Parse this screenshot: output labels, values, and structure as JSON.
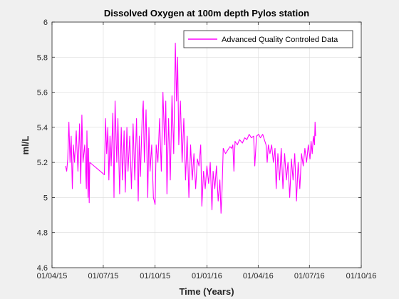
{
  "chart_data": {
    "type": "line",
    "title": "Dissolved Oxygen at 100m depth Pylos station",
    "xlabel": "Time (Years)",
    "ylabel": "ml/L",
    "xlim": [
      "2015-04-01",
      "2016-10-01"
    ],
    "ylim": [
      4.6,
      6
    ],
    "x_tick_labels": [
      "01/04/15",
      "01/07/15",
      "01/10/15",
      "01/01/16",
      "01/04/16",
      "01/07/16",
      "01/10/16"
    ],
    "x_tick_dates": [
      "2015-04-01",
      "2015-07-01",
      "2015-10-01",
      "2016-01-01",
      "2016-04-01",
      "2016-07-01",
      "2016-10-01"
    ],
    "y_ticks": [
      4.6,
      4.8,
      5,
      5.2,
      5.4,
      5.6,
      5.8,
      6
    ],
    "y_tick_labels": [
      "4.6",
      "4.8",
      "5",
      "5.2",
      "5.4",
      "5.6",
      "5.8",
      "6"
    ],
    "grid": true,
    "legend_position": "top-right",
    "series": [
      {
        "name": "Advanced Quality Controled Data",
        "color": "#ff00ff",
        "points": [
          [
            "2015-04-25",
            5.18
          ],
          [
            "2015-04-27",
            5.15
          ],
          [
            "2015-04-29",
            5.22
          ],
          [
            "2015-05-01",
            5.43
          ],
          [
            "2015-05-03",
            5.2
          ],
          [
            "2015-05-05",
            5.35
          ],
          [
            "2015-05-07",
            5.05
          ],
          [
            "2015-05-09",
            5.3
          ],
          [
            "2015-05-11",
            5.2
          ],
          [
            "2015-05-14",
            5.38
          ],
          [
            "2015-05-17",
            5.15
          ],
          [
            "2015-05-20",
            5.42
          ],
          [
            "2015-05-22",
            5.08
          ],
          [
            "2015-05-24",
            5.47
          ],
          [
            "2015-05-26",
            5.2
          ],
          [
            "2015-05-29",
            5.3
          ],
          [
            "2015-06-01",
            5.05
          ],
          [
            "2015-06-02",
            5.38
          ],
          [
            "2015-06-04",
            5.0
          ],
          [
            "2015-06-05",
            5.28
          ],
          [
            "2015-06-06",
            4.97
          ],
          [
            "2015-06-07",
            5.2
          ],
          [
            "2015-07-03",
            5.13
          ],
          [
            "2015-07-05",
            5.45
          ],
          [
            "2015-07-07",
            5.25
          ],
          [
            "2015-07-09",
            5.4
          ],
          [
            "2015-07-11",
            5.1
          ],
          [
            "2015-07-13",
            5.35
          ],
          [
            "2015-07-15",
            5.18
          ],
          [
            "2015-07-18",
            5.48
          ],
          [
            "2015-07-20",
            5.0
          ],
          [
            "2015-07-22",
            5.55
          ],
          [
            "2015-07-25",
            5.2
          ],
          [
            "2015-07-27",
            5.45
          ],
          [
            "2015-07-30",
            5.02
          ],
          [
            "2015-08-02",
            5.4
          ],
          [
            "2015-08-04",
            5.1
          ],
          [
            "2015-08-07",
            5.38
          ],
          [
            "2015-08-09",
            5.03
          ],
          [
            "2015-08-12",
            5.4
          ],
          [
            "2015-08-14",
            5.15
          ],
          [
            "2015-08-17",
            5.35
          ],
          [
            "2015-08-20",
            5.05
          ],
          [
            "2015-08-23",
            5.42
          ],
          [
            "2015-08-26",
            5.1
          ],
          [
            "2015-08-29",
            5.45
          ],
          [
            "2015-09-01",
            4.98
          ],
          [
            "2015-09-03",
            5.35
          ],
          [
            "2015-09-05",
            5.12
          ],
          [
            "2015-09-08",
            5.45
          ],
          [
            "2015-09-10",
            5.55
          ],
          [
            "2015-09-12",
            5.2
          ],
          [
            "2015-09-15",
            5.5
          ],
          [
            "2015-09-18",
            5.0
          ],
          [
            "2015-09-20",
            5.4
          ],
          [
            "2015-09-22",
            5.15
          ],
          [
            "2015-09-25",
            5.3
          ],
          [
            "2015-09-28",
            5.0
          ],
          [
            "2015-10-01",
            4.96
          ],
          [
            "2015-10-03",
            5.3
          ],
          [
            "2015-10-06",
            5.2
          ],
          [
            "2015-10-09",
            5.45
          ],
          [
            "2015-10-12",
            5.15
          ],
          [
            "2015-10-15",
            5.6
          ],
          [
            "2015-10-18",
            5.3
          ],
          [
            "2015-10-20",
            5.55
          ],
          [
            "2015-10-22",
            5.02
          ],
          [
            "2015-10-25",
            5.45
          ],
          [
            "2015-10-28",
            5.1
          ],
          [
            "2015-10-31",
            5.58
          ],
          [
            "2015-11-03",
            5.25
          ],
          [
            "2015-11-06",
            5.88
          ],
          [
            "2015-11-08",
            5.55
          ],
          [
            "2015-11-10",
            5.8
          ],
          [
            "2015-11-12",
            5.3
          ],
          [
            "2015-11-15",
            5.55
          ],
          [
            "2015-11-18",
            5.2
          ],
          [
            "2015-11-21",
            5.45
          ],
          [
            "2015-11-24",
            5.1
          ],
          [
            "2015-11-27",
            5.35
          ],
          [
            "2015-11-30",
            5.0
          ],
          [
            "2015-12-03",
            5.3
          ],
          [
            "2015-12-06",
            5.1
          ],
          [
            "2015-12-09",
            5.25
          ],
          [
            "2015-12-12",
            5.05
          ],
          [
            "2015-12-15",
            5.22
          ],
          [
            "2015-12-18",
            5.18
          ],
          [
            "2015-12-21",
            5.3
          ],
          [
            "2015-12-23",
            4.95
          ],
          [
            "2015-12-26",
            5.15
          ],
          [
            "2015-12-29",
            5.05
          ],
          [
            "2016-01-01",
            5.18
          ],
          [
            "2016-01-04",
            5.08
          ],
          [
            "2016-01-07",
            5.2
          ],
          [
            "2016-01-10",
            4.93
          ],
          [
            "2016-01-12",
            5.15
          ],
          [
            "2016-01-15",
            5.05
          ],
          [
            "2016-01-18",
            5.18
          ],
          [
            "2016-01-21",
            4.98
          ],
          [
            "2016-01-24",
            5.1
          ],
          [
            "2016-01-26",
            4.91
          ],
          [
            "2016-01-28",
            5.05
          ],
          [
            "2016-01-30",
            5.28
          ],
          [
            "2016-02-03",
            5.25
          ],
          [
            "2016-02-07",
            5.27
          ],
          [
            "2016-02-11",
            5.29
          ],
          [
            "2016-02-14",
            5.28
          ],
          [
            "2016-02-16",
            5.3
          ],
          [
            "2016-02-18",
            5.15
          ],
          [
            "2016-02-20",
            5.32
          ],
          [
            "2016-02-24",
            5.3
          ],
          [
            "2016-02-28",
            5.33
          ],
          [
            "2016-03-04",
            5.31
          ],
          [
            "2016-03-08",
            5.34
          ],
          [
            "2016-03-12",
            5.33
          ],
          [
            "2016-03-16",
            5.36
          ],
          [
            "2016-03-20",
            5.34
          ],
          [
            "2016-03-24",
            5.35
          ],
          [
            "2016-03-26",
            5.18
          ],
          [
            "2016-03-29",
            5.35
          ],
          [
            "2016-04-02",
            5.36
          ],
          [
            "2016-04-05",
            5.34
          ],
          [
            "2016-04-09",
            5.36
          ],
          [
            "2016-04-12",
            5.33
          ],
          [
            "2016-04-15",
            5.3
          ],
          [
            "2016-04-17",
            5.2
          ],
          [
            "2016-04-19",
            5.3
          ],
          [
            "2016-04-22",
            5.25
          ],
          [
            "2016-04-25",
            5.3
          ],
          [
            "2016-04-28",
            5.2
          ],
          [
            "2016-05-01",
            5.28
          ],
          [
            "2016-05-03",
            5.05
          ],
          [
            "2016-05-06",
            5.25
          ],
          [
            "2016-05-09",
            5.1
          ],
          [
            "2016-05-12",
            5.28
          ],
          [
            "2016-05-15",
            5.05
          ],
          [
            "2016-05-18",
            5.25
          ],
          [
            "2016-05-21",
            5.1
          ],
          [
            "2016-05-24",
            5.2
          ],
          [
            "2016-05-27",
            5.0
          ],
          [
            "2016-05-30",
            5.22
          ],
          [
            "2016-06-02",
            5.1
          ],
          [
            "2016-06-05",
            5.25
          ],
          [
            "2016-06-08",
            4.98
          ],
          [
            "2016-06-11",
            5.2
          ],
          [
            "2016-06-14",
            5.05
          ],
          [
            "2016-06-17",
            5.25
          ],
          [
            "2016-06-20",
            5.18
          ],
          [
            "2016-06-23",
            5.28
          ],
          [
            "2016-06-26",
            5.2
          ],
          [
            "2016-06-29",
            5.3
          ],
          [
            "2016-07-02",
            5.22
          ],
          [
            "2016-07-04",
            5.32
          ],
          [
            "2016-07-06",
            5.25
          ],
          [
            "2016-07-08",
            5.35
          ],
          [
            "2016-07-10",
            5.3
          ],
          [
            "2016-07-11",
            5.43
          ],
          [
            "2016-07-12",
            5.35
          ]
        ]
      }
    ]
  }
}
